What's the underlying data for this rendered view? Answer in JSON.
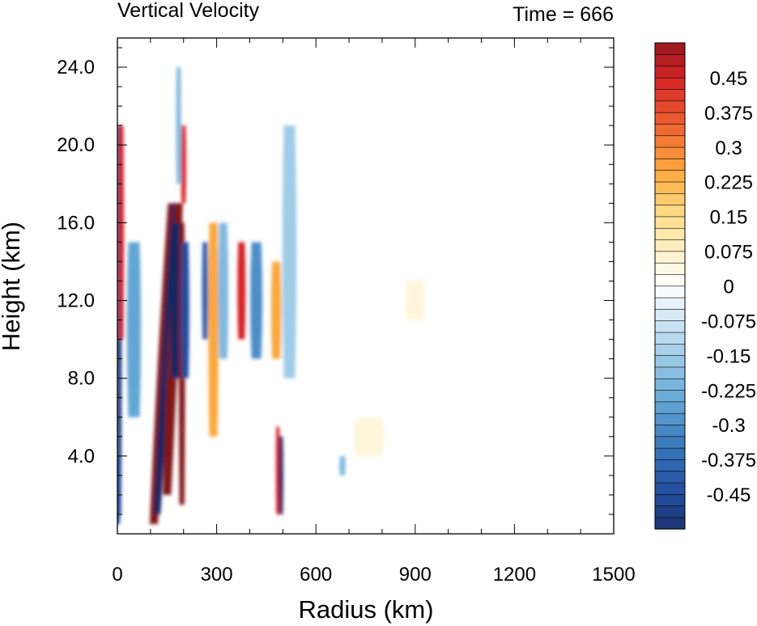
{
  "chart_data": {
    "type": "heatmap",
    "title": "Vertical Velocity",
    "title_right": "Time = 666",
    "xlabel": "Radius (km)",
    "ylabel": "Height (km)",
    "xlim": [
      0,
      1500
    ],
    "ylim": [
      0,
      25.5
    ],
    "x_ticks": [
      0,
      300,
      600,
      900,
      1200,
      1500
    ],
    "x_tick_labels": [
      "0",
      "300",
      "600",
      "900",
      "1200",
      "1500"
    ],
    "y_ticks": [
      4,
      8,
      12,
      16,
      20,
      24
    ],
    "y_tick_labels": [
      "4.0",
      "8.0",
      "12.0",
      "16.0",
      "20.0",
      "24.0"
    ],
    "grid": false,
    "colorbar": {
      "position": "right",
      "levels": [
        -0.525,
        -0.5,
        -0.475,
        -0.45,
        -0.425,
        -0.4,
        -0.375,
        -0.35,
        -0.325,
        -0.3,
        -0.275,
        -0.25,
        -0.225,
        -0.2,
        -0.175,
        -0.15,
        -0.125,
        -0.1,
        -0.075,
        -0.05,
        -0.025,
        0,
        0.025,
        0.05,
        0.075,
        0.1,
        0.125,
        0.15,
        0.175,
        0.2,
        0.225,
        0.25,
        0.275,
        0.3,
        0.325,
        0.35,
        0.375,
        0.4,
        0.425,
        0.45,
        0.475,
        0.5,
        0.525
      ],
      "tick_labels": [
        "0.45",
        "0.375",
        "0.3",
        "0.225",
        "0.15",
        "0.075",
        "0",
        "-0.075",
        "-0.15",
        "-0.225",
        "-0.3",
        "-0.375",
        "-0.45"
      ],
      "tick_values": [
        0.45,
        0.375,
        0.3,
        0.225,
        0.15,
        0.075,
        0,
        -0.075,
        -0.15,
        -0.225,
        -0.3,
        -0.375,
        -0.45
      ],
      "colormap": "blue-white-red diverging"
    },
    "features": [
      {
        "r": 5,
        "z0": 1,
        "z1": 21,
        "v": -0.5,
        "w": 5
      },
      {
        "r": 12,
        "z0": 10,
        "z1": 21,
        "v": 0.45,
        "w": 5
      },
      {
        "r": 0,
        "z0": 0.5,
        "z1": 4,
        "v": -0.45,
        "w": 6
      },
      {
        "r": 50,
        "z0": 6,
        "z1": 15,
        "v": -0.25,
        "w": 14
      },
      {
        "r": 110,
        "z0": 0.5,
        "z1": 17,
        "v": 0.55,
        "w": 10,
        "tilt": 55
      },
      {
        "r": 120,
        "z0": 1,
        "z1": 17,
        "v": -0.55,
        "w": 8,
        "tilt": 55
      },
      {
        "r": 150,
        "z0": 2,
        "z1": 17,
        "v": 0.55,
        "w": 10,
        "tilt": 35
      },
      {
        "r": 175,
        "z0": 8,
        "z1": 16,
        "v": -0.55,
        "w": 11
      },
      {
        "r": 195,
        "z0": 1.5,
        "z1": 16,
        "v": 0.55,
        "w": 6
      },
      {
        "r": 205,
        "z0": 8,
        "z1": 15,
        "v": -0.45,
        "w": 8
      },
      {
        "r": 200,
        "z0": 17,
        "z1": 21,
        "v": 0.45,
        "w": 5
      },
      {
        "r": 185,
        "z0": 18,
        "z1": 24,
        "v": -0.2,
        "w": 5
      },
      {
        "r": 265,
        "z0": 10,
        "z1": 15,
        "v": -0.4,
        "w": 6
      },
      {
        "r": 290,
        "z0": 5,
        "z1": 16,
        "v": 0.25,
        "w": 10
      },
      {
        "r": 320,
        "z0": 9,
        "z1": 16,
        "v": -0.2,
        "w": 10
      },
      {
        "r": 375,
        "z0": 10,
        "z1": 15,
        "v": 0.45,
        "w": 8
      },
      {
        "r": 420,
        "z0": 9,
        "z1": 15,
        "v": -0.3,
        "w": 12
      },
      {
        "r": 485,
        "z0": 1,
        "z1": 5.5,
        "v": 0.45,
        "w": 4
      },
      {
        "r": 495,
        "z0": 1,
        "z1": 5,
        "v": -0.55,
        "w": 4
      },
      {
        "r": 480,
        "z0": 9,
        "z1": 14,
        "v": 0.25,
        "w": 10
      },
      {
        "r": 520,
        "z0": 8,
        "z1": 21,
        "v": -0.15,
        "w": 14
      },
      {
        "r": 680,
        "z0": 3,
        "z1": 4,
        "v": -0.2,
        "w": 6
      },
      {
        "r": 760,
        "z0": 4,
        "z1": 6,
        "v": 0.05,
        "w": 30
      },
      {
        "r": 900,
        "z0": 11,
        "z1": 13,
        "v": 0.05,
        "w": 20
      }
    ]
  }
}
